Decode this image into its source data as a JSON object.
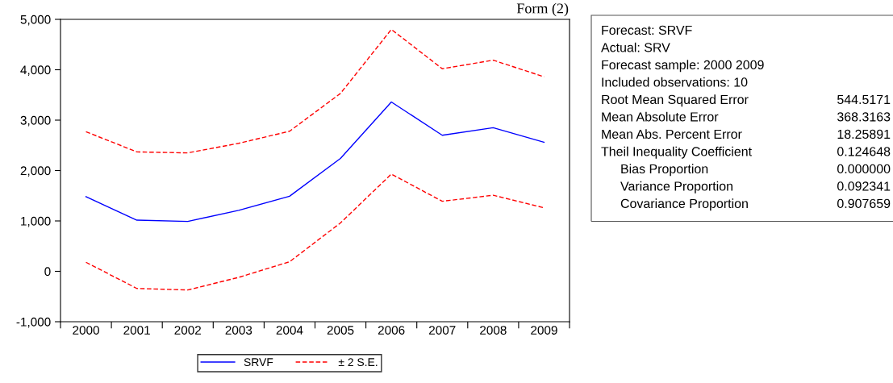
{
  "chart_data": {
    "type": "line",
    "title": "Form (2)",
    "categories": [
      "2000",
      "2001",
      "2002",
      "2003",
      "2004",
      "2005",
      "2006",
      "2007",
      "2008",
      "2009"
    ],
    "series": [
      {
        "name": "SRVF",
        "color": "#0000ff",
        "line_style": "solid",
        "values": [
          1480,
          1015,
          990,
          1210,
          1490,
          2240,
          3360,
          2700,
          2850,
          2560
        ]
      },
      {
        "name": "± 2 S.E.",
        "color": "#ff0000",
        "line_style": "dashed",
        "values": [
          2770,
          2370,
          2350,
          2540,
          2780,
          3530,
          4800,
          4020,
          4190,
          3860
        ]
      },
      {
        "color": "#ff0000",
        "line_style": "dashed",
        "values": [
          180,
          -340,
          -370,
          -120,
          190,
          960,
          1930,
          1390,
          1510,
          1260
        ]
      }
    ],
    "ylim": [
      -1000,
      5000
    ],
    "yticks": [
      {
        "value": -1000,
        "label": "-1,000"
      },
      {
        "value": 0,
        "label": "0"
      },
      {
        "value": 1000,
        "label": "1,000"
      },
      {
        "value": 2000,
        "label": "2,000"
      },
      {
        "value": 3000,
        "label": "3,000"
      },
      {
        "value": 4000,
        "label": "4,000"
      },
      {
        "value": 5000,
        "label": "5,000"
      }
    ],
    "grid": false,
    "legend": "bottom",
    "marker": "none",
    "annotations": [
      "Forecast: SRVF",
      "Actual: SRV",
      "Forecast sample: 2000 2009",
      "Included observations: 10",
      "Root Mean Squared Error\t544.5171",
      "Mean Absolute Error\t368.3163",
      "Mean Abs. Percent Error\t18.25891",
      "Theil Inequality Coefficient\t0.124648",
      "   Bias Proportion\t0.000000",
      "   Variance Proportion\t0.092341",
      "   Covariance Proportion\t0.907659"
    ]
  }
}
